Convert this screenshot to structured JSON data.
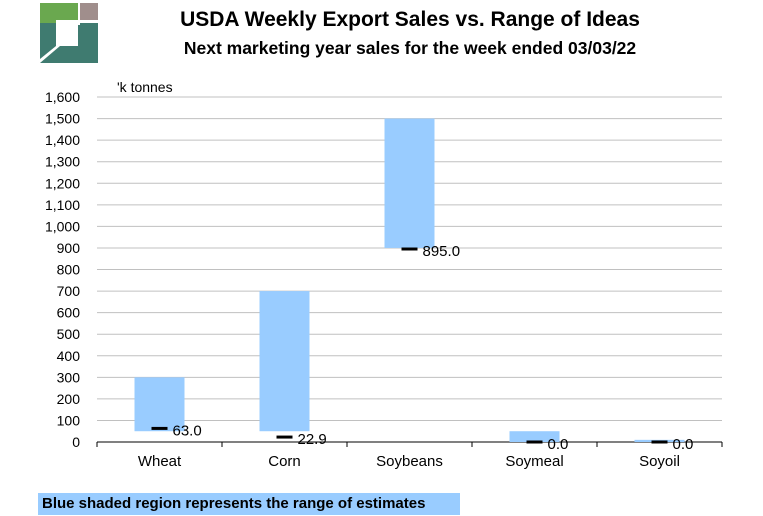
{
  "header": {
    "title": "USDA Weekly Export Sales vs. Range of Ideas",
    "subtitle": "Next marketing year sales for the week ended 03/03/22"
  },
  "footer": {
    "note": "Blue shaded region represents the range of estimates"
  },
  "colors": {
    "range_fill": "#99ccff",
    "actual_marker": "#000000",
    "grid": "#c0c0c0",
    "logo_green": "#6aa84f",
    "logo_teal": "#3f7b70",
    "logo_mauve": "#a08e8c"
  },
  "chart_data": {
    "type": "bar",
    "subtype": "floating range bars with actual-value markers",
    "ylabel": "'k tonnes",
    "ylim": [
      0,
      1600
    ],
    "yticks": [
      "0",
      "100",
      "200",
      "300",
      "400",
      "500",
      "600",
      "700",
      "800",
      "900",
      "1,000",
      "1,100",
      "1,200",
      "1,300",
      "1,400",
      "1,500",
      "1,600"
    ],
    "grid": true,
    "categories": [
      "Wheat",
      "Corn",
      "Soybeans",
      "Soymeal",
      "Soyoil"
    ],
    "range_low": [
      50,
      50,
      900,
      0,
      0
    ],
    "range_high": [
      300,
      700,
      1500,
      50,
      10
    ],
    "actual": [
      63.0,
      22.9,
      895.0,
      0.0,
      0.0
    ],
    "actual_labels": [
      "63.0",
      "22.9",
      "895.0",
      "0.0",
      "0.0"
    ]
  }
}
